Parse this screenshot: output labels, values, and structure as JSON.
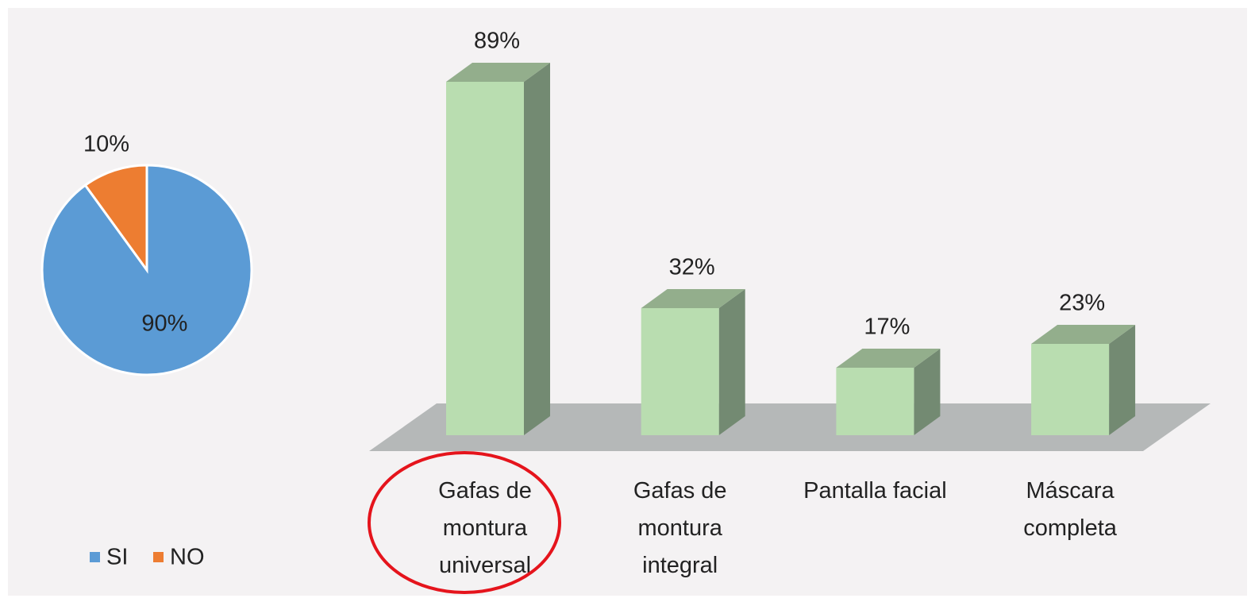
{
  "chart_data": [
    {
      "type": "pie",
      "categories": [
        "SI",
        "NO"
      ],
      "values": [
        90,
        10
      ],
      "value_labels": [
        "90%",
        "10%"
      ],
      "colors": [
        "#5b9bd5",
        "#ed7d31"
      ],
      "legend": "bottom"
    },
    {
      "type": "bar3d",
      "categories": [
        "Gafas de montura universal",
        "Gafas de montura integral",
        "Pantalla facial",
        "Máscara completa"
      ],
      "values": [
        89,
        32,
        17,
        23
      ],
      "value_labels": [
        "89%",
        "32%",
        "17%",
        "23%"
      ],
      "color": "#b9ddb0"
    }
  ]
}
